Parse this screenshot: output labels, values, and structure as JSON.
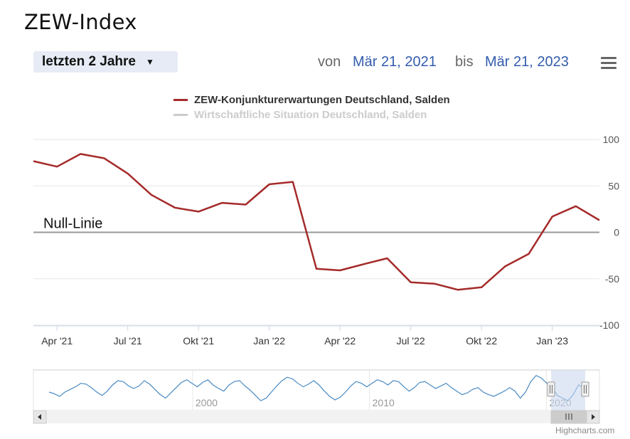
{
  "page_title": "ZEW-Index",
  "range_selector": {
    "label": "letzten 2 Jahre",
    "caret": "▼"
  },
  "date_range": {
    "from_label": "von",
    "from": "Mär 21, 2021",
    "to_label": "bis",
    "to": "Mär 21, 2023"
  },
  "menu_icon": "hamburger-menu-icon",
  "credits": "Highcharts.com",
  "colors": {
    "series1": "#a52a2a",
    "series2": "#cccccc",
    "nullline": "#999999",
    "navigator": "#4a8ac3",
    "navigator_mask": "#cbd9ee"
  },
  "chart_data": {
    "type": "line",
    "title": "ZEW-Index",
    "series": [
      {
        "name": "ZEW-Konjunkturerwartungen Deutschland, Salden",
        "visible": true,
        "x": [
          "2021-03",
          "2021-04",
          "2021-05",
          "2021-06",
          "2021-07",
          "2021-08",
          "2021-09",
          "2021-10",
          "2021-11",
          "2021-12",
          "2022-01",
          "2022-02",
          "2022-03",
          "2022-04",
          "2022-05",
          "2022-06",
          "2022-07",
          "2022-08",
          "2022-09",
          "2022-10",
          "2022-11",
          "2022-12",
          "2023-01",
          "2023-02",
          "2023-03"
        ],
        "values": [
          76.6,
          70.7,
          84.4,
          79.8,
          63.3,
          40.4,
          26.5,
          22.3,
          31.7,
          29.9,
          51.7,
          54.3,
          -39.3,
          -41.0,
          -34.3,
          -28.0,
          -53.8,
          -55.3,
          -61.9,
          -59.2,
          -36.7,
          -23.3,
          16.9,
          28.1,
          13.0
        ]
      },
      {
        "name": "Wirtschaftliche Situation Deutschland, Salden",
        "visible": false,
        "values": []
      }
    ],
    "x_ticks": [
      "Apr '21",
      "Jul '21",
      "Okt '21",
      "Jan '22",
      "Apr '22",
      "Jul '22",
      "Okt '22",
      "Jan '23"
    ],
    "y_ticks": [
      100,
      50,
      0,
      -50,
      -100
    ],
    "ylim": [
      -100,
      100
    ],
    "annotation": "Null-Linie",
    "legend_position": "top",
    "navigator": {
      "x_ticks": [
        "2000",
        "2010",
        "2020"
      ],
      "year_range": [
        1991,
        2023
      ],
      "values": [
        -10,
        -20,
        -35,
        -10,
        5,
        20,
        40,
        35,
        15,
        -10,
        -30,
        -5,
        30,
        55,
        50,
        25,
        10,
        25,
        55,
        35,
        5,
        -25,
        -45,
        -15,
        15,
        45,
        60,
        40,
        20,
        45,
        60,
        30,
        10,
        -5,
        30,
        50,
        55,
        25,
        0,
        -30,
        -60,
        -45,
        -10,
        25,
        55,
        75,
        65,
        40,
        20,
        35,
        55,
        30,
        -5,
        -35,
        -55,
        -40,
        -10,
        25,
        50,
        40,
        20,
        40,
        60,
        50,
        30,
        55,
        50,
        20,
        -5,
        15,
        45,
        50,
        30,
        10,
        25,
        40,
        15,
        -5,
        -25,
        -15,
        5,
        15,
        -10,
        -25,
        -35,
        -20,
        -5,
        15,
        -5,
        -45,
        -10,
        50,
        85,
        70,
        40,
        20,
        -30,
        -45,
        -60,
        -25,
        30,
        15
      ]
    }
  }
}
